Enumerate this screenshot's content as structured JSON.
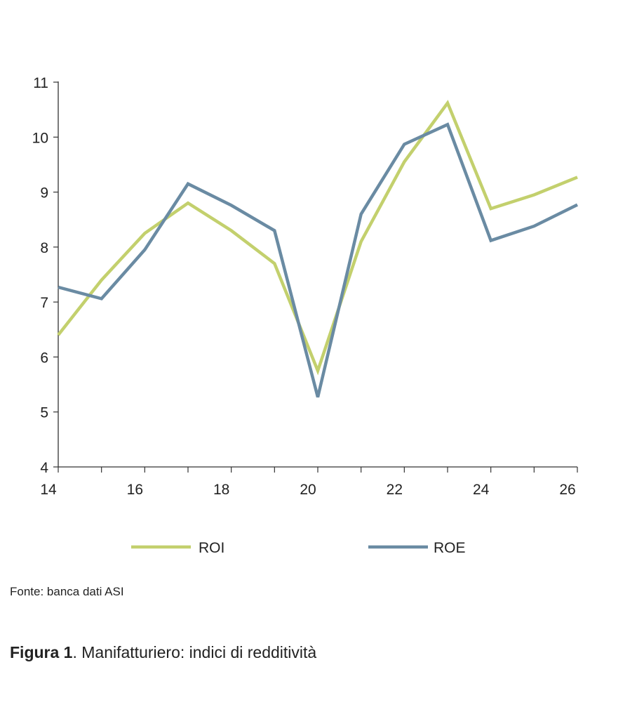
{
  "chart_data": {
    "type": "line",
    "x": [
      14,
      15,
      16,
      17,
      18,
      19,
      20,
      21,
      22,
      23,
      24,
      25,
      26
    ],
    "x_ticks": [
      "14",
      "16",
      "18",
      "20",
      "22",
      "24",
      "26"
    ],
    "y_ticks": [
      "4",
      "5",
      "6",
      "7",
      "8",
      "9",
      "10",
      "11"
    ],
    "xlim": [
      14,
      26
    ],
    "ylim": [
      4,
      11
    ],
    "grid": false,
    "legend_position": "bottom",
    "series": [
      {
        "name": "ROI",
        "color": "#c3d06d",
        "values": [
          6.4,
          7.4,
          8.25,
          8.8,
          8.3,
          7.7,
          5.75,
          8.1,
          9.55,
          10.62,
          8.7,
          8.95,
          9.27
        ]
      },
      {
        "name": "ROE",
        "color": "#6a8ba3",
        "values": [
          7.27,
          7.06,
          7.95,
          9.15,
          8.76,
          8.3,
          5.27,
          8.6,
          9.87,
          10.23,
          8.12,
          8.38,
          8.77
        ]
      }
    ]
  },
  "source": "Fonte: banca dati ASI",
  "caption": {
    "bold": "Figura 1",
    "text": ". Manifatturiero: indici di redditività"
  }
}
